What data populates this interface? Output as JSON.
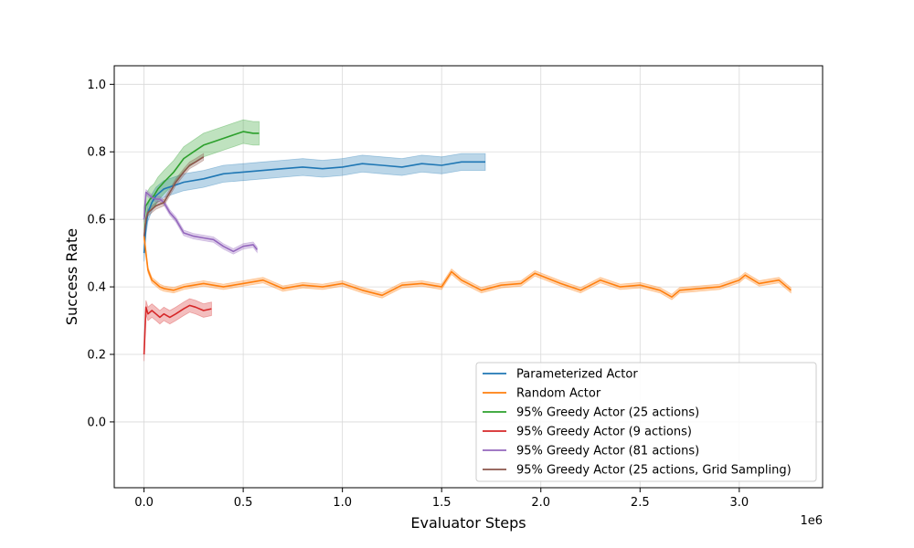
{
  "chart_data": {
    "type": "line",
    "title": "",
    "xlabel": "Evaluator Steps",
    "ylabel": "Success Rate",
    "x_offset_label": "1e6",
    "xlim": [
      -150000,
      3420000
    ],
    "ylim": [
      -0.195,
      1.055
    ],
    "x_ticks": [
      0,
      500000,
      1000000,
      1500000,
      2000000,
      2500000,
      3000000
    ],
    "x_tick_labels": [
      "0.0",
      "0.5",
      "1.0",
      "1.5",
      "2.0",
      "2.5",
      "3.0"
    ],
    "y_ticks": [
      0.0,
      0.2,
      0.4,
      0.6,
      0.8,
      1.0
    ],
    "y_tick_labels": [
      "0.0",
      "0.2",
      "0.4",
      "0.6",
      "0.8",
      "1.0"
    ],
    "grid": true,
    "legend_position": "lower-right",
    "series": [
      {
        "name": "Parameterized Actor",
        "color": "#1f77b4",
        "band": 0.025,
        "x": [
          0,
          10000,
          20000,
          40000,
          60000,
          80000,
          100000,
          150000,
          200000,
          300000,
          400000,
          500000,
          600000,
          700000,
          800000,
          900000,
          1000000,
          1100000,
          1200000,
          1300000,
          1400000,
          1500000,
          1600000,
          1720000
        ],
        "y": [
          0.5,
          0.58,
          0.62,
          0.65,
          0.67,
          0.68,
          0.69,
          0.7,
          0.71,
          0.72,
          0.735,
          0.74,
          0.745,
          0.75,
          0.755,
          0.75,
          0.755,
          0.765,
          0.76,
          0.755,
          0.765,
          0.76,
          0.77,
          0.77
        ]
      },
      {
        "name": "Random Actor",
        "color": "#ff7f0e",
        "band": 0.008,
        "x": [
          0,
          10000,
          20000,
          40000,
          60000,
          80000,
          100000,
          150000,
          200000,
          300000,
          400000,
          500000,
          600000,
          700000,
          800000,
          900000,
          1000000,
          1100000,
          1200000,
          1300000,
          1400000,
          1500000,
          1550000,
          1600000,
          1700000,
          1800000,
          1900000,
          1970000,
          2100000,
          2200000,
          2300000,
          2400000,
          2500000,
          2600000,
          2660000,
          2700000,
          2800000,
          2900000,
          3000000,
          3030000,
          3100000,
          3200000,
          3260000
        ],
        "y": [
          0.55,
          0.5,
          0.45,
          0.42,
          0.41,
          0.4,
          0.395,
          0.39,
          0.4,
          0.41,
          0.4,
          0.41,
          0.42,
          0.395,
          0.405,
          0.4,
          0.41,
          0.39,
          0.375,
          0.405,
          0.41,
          0.4,
          0.445,
          0.42,
          0.39,
          0.405,
          0.41,
          0.44,
          0.41,
          0.39,
          0.42,
          0.4,
          0.405,
          0.39,
          0.37,
          0.39,
          0.395,
          0.4,
          0.42,
          0.435,
          0.41,
          0.42,
          0.39
        ]
      },
      {
        "name": "95% Greedy Actor (25 actions)",
        "color": "#2ca02c",
        "band": 0.035,
        "x": [
          0,
          10000,
          30000,
          50000,
          70000,
          100000,
          150000,
          200000,
          250000,
          300000,
          350000,
          400000,
          450000,
          500000,
          550000,
          580000
        ],
        "y": [
          0.6,
          0.64,
          0.66,
          0.67,
          0.69,
          0.71,
          0.74,
          0.78,
          0.8,
          0.82,
          0.83,
          0.84,
          0.85,
          0.86,
          0.855,
          0.855
        ]
      },
      {
        "name": "95% Greedy Actor (9 actions)",
        "color": "#d62728",
        "band": 0.02,
        "x": [
          0,
          10000,
          20000,
          40000,
          60000,
          80000,
          100000,
          130000,
          160000,
          200000,
          230000,
          260000,
          300000,
          340000
        ],
        "y": [
          0.2,
          0.34,
          0.32,
          0.33,
          0.32,
          0.31,
          0.32,
          0.31,
          0.32,
          0.335,
          0.345,
          0.34,
          0.33,
          0.335
        ]
      },
      {
        "name": "95% Greedy Actor (81 actions)",
        "color": "#9467bd",
        "band": 0.008,
        "x": [
          0,
          10000,
          20000,
          40000,
          60000,
          80000,
          100000,
          130000,
          160000,
          200000,
          250000,
          300000,
          350000,
          400000,
          450000,
          500000,
          550000,
          570000
        ],
        "y": [
          0.6,
          0.68,
          0.675,
          0.665,
          0.66,
          0.66,
          0.65,
          0.62,
          0.6,
          0.56,
          0.55,
          0.545,
          0.54,
          0.52,
          0.505,
          0.52,
          0.525,
          0.51
        ]
      },
      {
        "name": "95% Greedy Actor (25 actions, Grid Sampling)",
        "color": "#8c564b",
        "band": 0.01,
        "x": [
          0,
          10000,
          20000,
          40000,
          60000,
          80000,
          100000,
          130000,
          160000,
          200000,
          230000,
          260000,
          300000
        ],
        "y": [
          0.55,
          0.6,
          0.62,
          0.63,
          0.64,
          0.645,
          0.65,
          0.68,
          0.71,
          0.74,
          0.76,
          0.77,
          0.785
        ]
      }
    ]
  }
}
